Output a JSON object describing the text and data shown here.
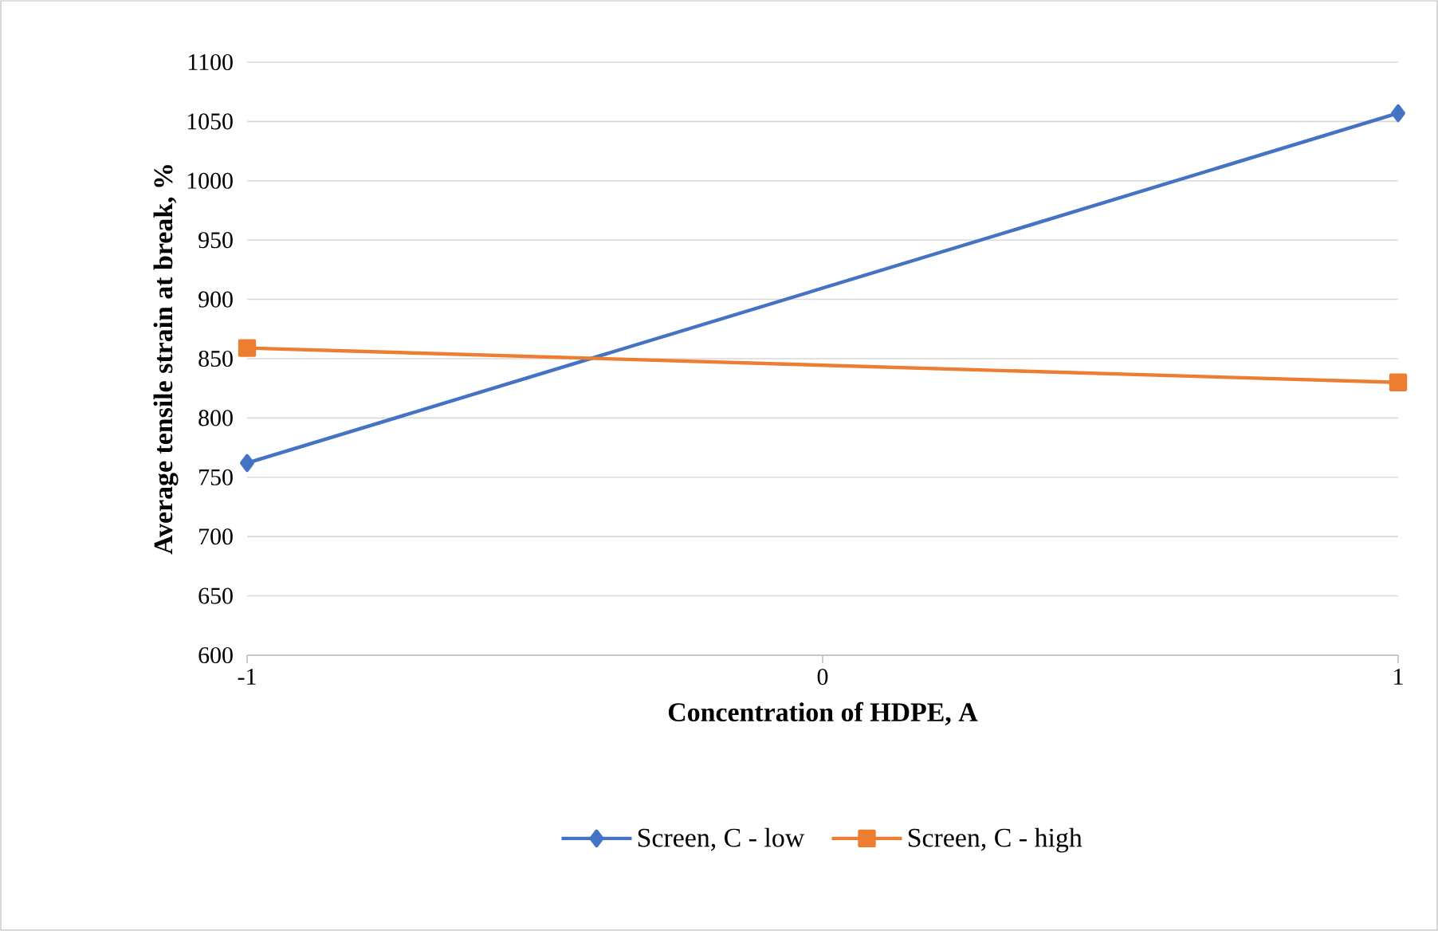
{
  "chart_data": {
    "type": "line",
    "xlabel": "Concentration of HDPE, A",
    "ylabel": "Average tensile strain at break, %",
    "x": [
      -1,
      1
    ],
    "series": [
      {
        "name": "Screen, C - low",
        "color": "#4472c4",
        "values": [
          762,
          1057
        ],
        "marker": "diamond"
      },
      {
        "name": "Screen, C - high",
        "color": "#ed7d31",
        "values": [
          859,
          830
        ],
        "marker": "square"
      }
    ],
    "xlim": [
      -1,
      1
    ],
    "xticks": [
      -1,
      0,
      1
    ],
    "ylim": [
      600,
      1100
    ],
    "yticks": [
      600,
      650,
      700,
      750,
      800,
      850,
      900,
      950,
      1000,
      1050,
      1100
    ],
    "grid": "y",
    "legend": "bottom"
  }
}
